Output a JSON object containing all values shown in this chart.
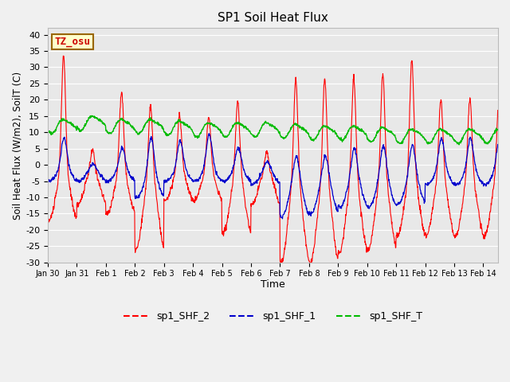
{
  "title": "SP1 Soil Heat Flux",
  "xlabel": "Time",
  "ylabel": "Soil Heat Flux (W/m2), SoilT (C)",
  "ylim": [
    -30,
    42
  ],
  "yticks": [
    -30,
    -25,
    -20,
    -15,
    -10,
    -5,
    0,
    5,
    10,
    15,
    20,
    25,
    30,
    35,
    40
  ],
  "xtick_labels": [
    "Jan 30",
    "Jan 31",
    "Feb 1",
    "Feb 2",
    "Feb 3",
    "Feb 4",
    "Feb 5",
    "Feb 6",
    "Feb 7",
    "Feb 8",
    "Feb 9",
    "Feb 10",
    "Feb 11",
    "Feb 12",
    "Feb 13",
    "Feb 14"
  ],
  "color_red": "#ff0000",
  "color_blue": "#0000cc",
  "color_green": "#00bb00",
  "bg_color": "#e8e8e8",
  "grid_color": "#ffffff",
  "legend_labels": [
    "sp1_SHF_2",
    "sp1_SHF_1",
    "sp1_SHF_T"
  ],
  "tz_label": "TZ_osu",
  "tz_bg": "#ffffcc",
  "tz_border": "#996600",
  "fig_bg": "#f0f0f0"
}
